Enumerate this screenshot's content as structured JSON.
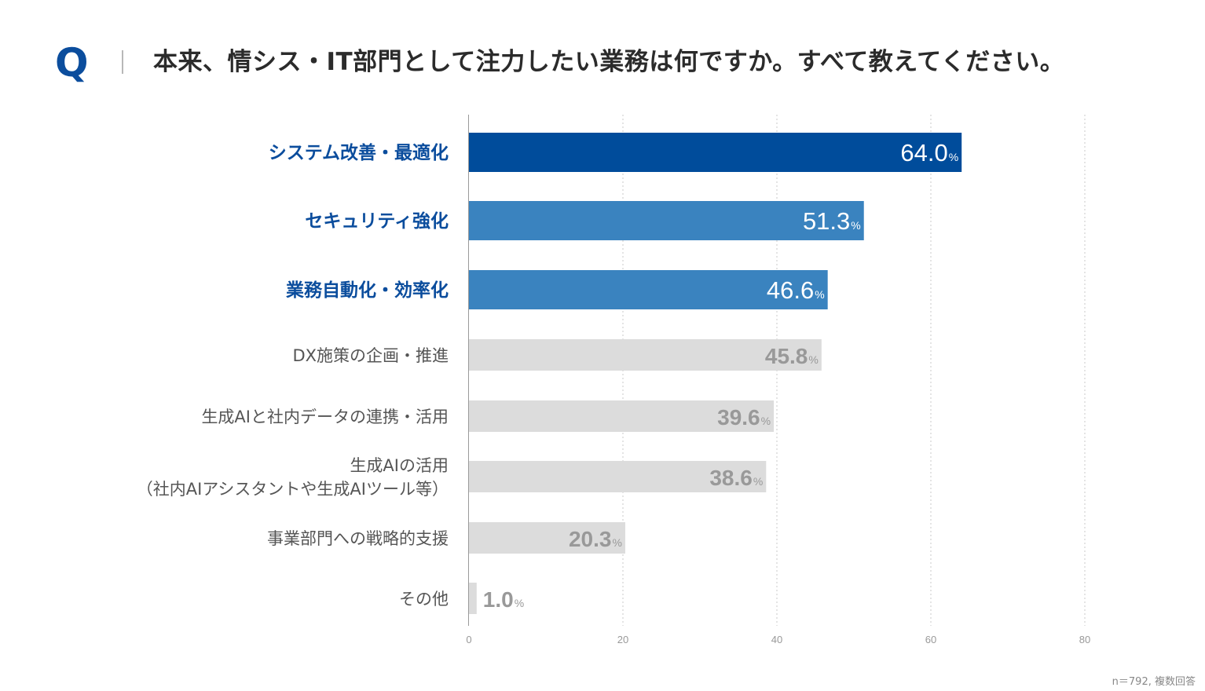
{
  "header": {
    "q_mark": "Q",
    "question": "本来、情シス・IT部門として注力したい業務は何ですか。すべて教えてください。"
  },
  "chart_data": {
    "type": "bar",
    "orientation": "horizontal",
    "categories": [
      "システム改善・最適化",
      "セキュリティ強化",
      "業務自動化・効率化",
      "DX施策の企画・推進",
      "生成AIと社内データの連携・活用",
      [
        "生成AIの活用",
        "（社内AIアシスタントや生成AIツール等）"
      ],
      "事業部門への戦略的支援",
      "その他"
    ],
    "values": [
      64.0,
      51.3,
      46.6,
      45.8,
      39.6,
      38.6,
      20.3,
      1.0
    ],
    "value_labels": [
      "64.0",
      "51.3",
      "46.6",
      "45.8",
      "39.6",
      "38.6",
      "20.3",
      "1.0"
    ],
    "value_suffix": "%",
    "highlighted": [
      true,
      true,
      true,
      false,
      false,
      false,
      false,
      false
    ],
    "xlim": [
      0,
      80
    ],
    "xticks": [
      0,
      20,
      40,
      60,
      80
    ],
    "grid": true,
    "colors": {
      "top": "#004c9b",
      "highlight": "#3a83bf",
      "normal": "#dcdcdc",
      "label_highlight": "#0b4d9d",
      "label_normal": "#555555",
      "value_normal": "#999999",
      "value_highlight": "#ffffff"
    }
  },
  "footnote": "n＝792, 複数回答"
}
